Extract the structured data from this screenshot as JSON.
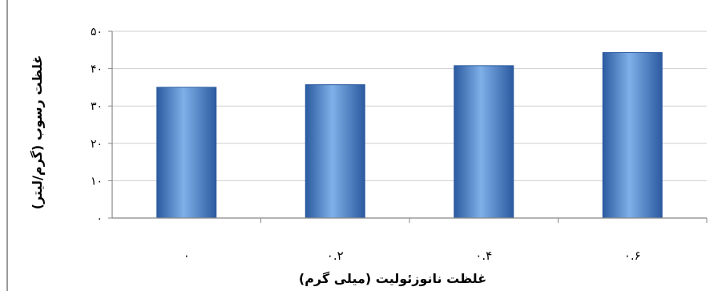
{
  "chart_data": {
    "type": "bar",
    "categories": [
      "۰",
      "۰.۲",
      "۰.۴",
      "۰.۶"
    ],
    "values": [
      35,
      35.7,
      40.8,
      44.3
    ],
    "xlabel": "غلظت نانوزئولیت (میلی گرم)",
    "ylabel": "غلظت رسوب (گرم/لیتر)",
    "ylim": [
      0,
      50
    ],
    "yticks": [
      {
        "value": 0,
        "label": "۰"
      },
      {
        "value": 10,
        "label": "۱۰"
      },
      {
        "value": 20,
        "label": "۲۰"
      },
      {
        "value": 30,
        "label": "۳۰"
      },
      {
        "value": 40,
        "label": "۴۰"
      },
      {
        "value": 50,
        "label": "۵۰"
      }
    ],
    "grid": true,
    "colors": {
      "bar": "#4a7fc8",
      "bar_dark": "#2c5aa0",
      "bar_light": "#7fb0e8",
      "grid": "#cfcfcf",
      "axis": "#888888",
      "text": "#000000"
    }
  }
}
